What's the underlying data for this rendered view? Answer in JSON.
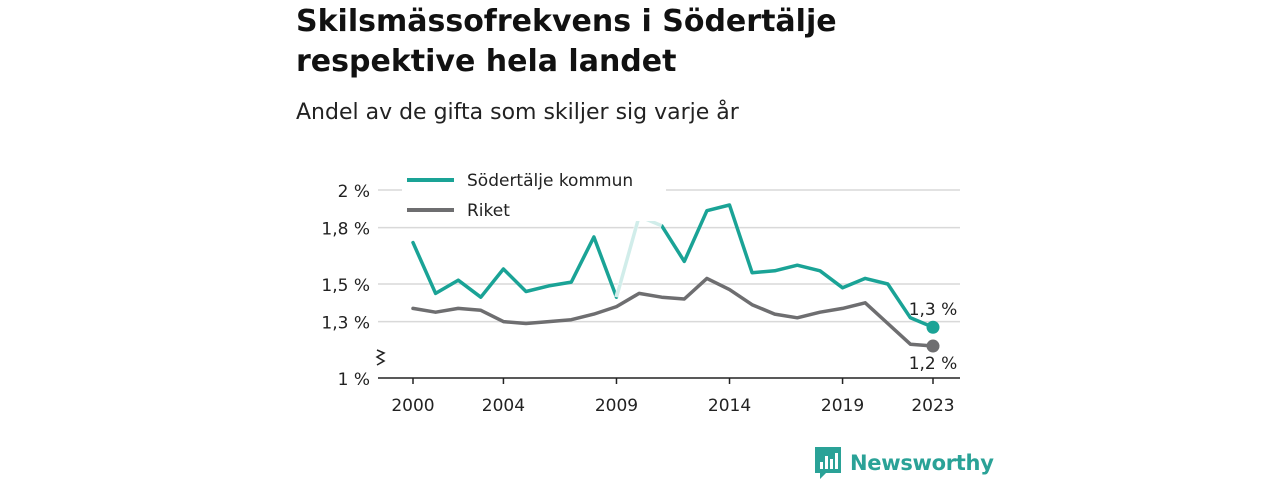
{
  "header": {
    "title_line1": "Skilsmässofrekvens i Södertälje",
    "title_line2": "respektive hela landet",
    "subtitle": "Andel av de gifta som skiljer sig varje år"
  },
  "brand": {
    "name": "Newsworthy",
    "color": "#2aa297"
  },
  "chart_data": {
    "type": "line",
    "x": [
      2000,
      2001,
      2002,
      2003,
      2004,
      2005,
      2006,
      2007,
      2008,
      2009,
      2010,
      2011,
      2012,
      2013,
      2014,
      2015,
      2016,
      2017,
      2018,
      2019,
      2020,
      2021,
      2022,
      2023
    ],
    "x_ticks": [
      2000,
      2004,
      2009,
      2014,
      2019,
      2023
    ],
    "y_ticks": [
      {
        "value": 1.0,
        "label": "1 %"
      },
      {
        "value": 1.3,
        "label": "1,3 %"
      },
      {
        "value": 1.5,
        "label": "1,5 %"
      },
      {
        "value": 1.8,
        "label": "1,8 %"
      },
      {
        "value": 2.0,
        "label": "2 %"
      }
    ],
    "ylim": [
      1.0,
      2.0
    ],
    "axis_break": true,
    "grid": true,
    "legend_position": "top-left",
    "series": [
      {
        "name": "Södertälje kommun",
        "color": "#1aa396",
        "values": [
          1.72,
          1.45,
          1.52,
          1.43,
          1.58,
          1.46,
          1.49,
          1.51,
          1.75,
          1.43,
          1.86,
          1.81,
          1.62,
          1.89,
          1.92,
          1.56,
          1.57,
          1.6,
          1.57,
          1.48,
          1.53,
          1.5,
          1.32,
          1.27
        ],
        "end_label": "1,3 %",
        "uncertain_segment": [
          2009,
          2011
        ]
      },
      {
        "name": "Riket",
        "color": "#6e6e70",
        "values": [
          1.37,
          1.35,
          1.37,
          1.36,
          1.3,
          1.29,
          1.3,
          1.31,
          1.34,
          1.38,
          1.45,
          1.43,
          1.42,
          1.53,
          1.47,
          1.39,
          1.34,
          1.32,
          1.35,
          1.37,
          1.4,
          1.29,
          1.18,
          1.17
        ],
        "end_label": "1,2 %"
      }
    ]
  }
}
